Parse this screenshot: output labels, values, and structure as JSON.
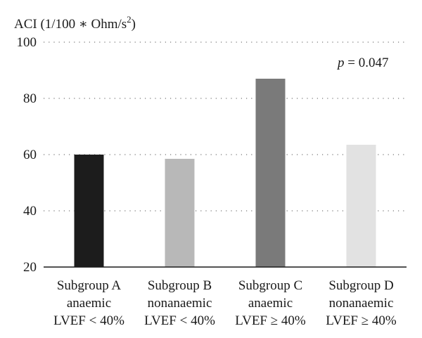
{
  "chart_data": {
    "type": "bar",
    "ylabel_main": "ACI (1/100 ∗ Ohm/s",
    "ylabel_sup": "2",
    "ylabel_end": ")",
    "annotation_italic": "p",
    "annotation_rest": " = 0.047",
    "ylim": [
      20,
      100
    ],
    "yticks": [
      "20",
      "40",
      "60",
      "80",
      "100"
    ],
    "grid": true,
    "categories": [
      [
        "Subgroup A",
        "anaemic",
        "LVEF < 40%"
      ],
      [
        "Subgroup B",
        "nonanaemic",
        "LVEF < 40%"
      ],
      [
        "Subgroup C",
        "anaemic",
        "LVEF ≥ 40%"
      ],
      [
        "Subgroup D",
        "nonanaemic",
        "LVEF ≥ 40%"
      ]
    ],
    "values": [
      60,
      58.5,
      87,
      63.5
    ],
    "colors": [
      "#1c1c1c",
      "#b8b8b8",
      "#7a7a7a",
      "#e2e2e2"
    ]
  }
}
